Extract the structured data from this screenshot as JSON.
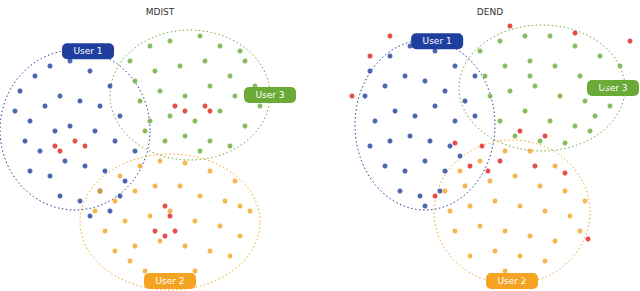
{
  "chart_data": [
    {
      "type": "scatter",
      "title": "MDIST",
      "xlim": [
        0,
        310
      ],
      "ylim": [
        0,
        291
      ],
      "tick_labels": false,
      "series": [
        {
          "name": "User 1",
          "color": "#1f3f9e",
          "ellipse": [
            75,
            161,
            75,
            80
          ],
          "values": [
            [
              20,
              200
            ],
            [
              35,
              215
            ],
            [
              50,
              225
            ],
            [
              70,
              230
            ],
            [
              90,
              220
            ],
            [
              110,
              205
            ],
            [
              15,
              180
            ],
            [
              30,
              170
            ],
            [
              45,
              185
            ],
            [
              60,
              195
            ],
            [
              80,
              190
            ],
            [
              100,
              185
            ],
            [
              120,
              175
            ],
            [
              25,
              150
            ],
            [
              40,
              140
            ],
            [
              55,
              160
            ],
            [
              70,
              165
            ],
            [
              95,
              160
            ],
            [
              115,
              150
            ],
            [
              135,
              140
            ],
            [
              30,
              120
            ],
            [
              50,
              115
            ],
            [
              65,
              130
            ],
            [
              85,
              125
            ],
            [
              105,
              120
            ],
            [
              125,
              110
            ],
            [
              60,
              95
            ],
            [
              80,
              90
            ],
            [
              100,
              100
            ],
            [
              120,
              95
            ],
            [
              90,
              75
            ],
            [
              110,
              80
            ]
          ]
        },
        {
          "name": "User 3",
          "color": "#6aaa36",
          "ellipse": [
            190,
            196,
            80,
            65
          ],
          "values": [
            [
              130,
              230
            ],
            [
              150,
              245
            ],
            [
              170,
              250
            ],
            [
              200,
              255
            ],
            [
              220,
              245
            ],
            [
              245,
              230
            ],
            [
              135,
              210
            ],
            [
              155,
              220
            ],
            [
              180,
              225
            ],
            [
              205,
              230
            ],
            [
              230,
              215
            ],
            [
              255,
              205
            ],
            [
              140,
              190
            ],
            [
              160,
              200
            ],
            [
              185,
              195
            ],
            [
              210,
              205
            ],
            [
              235,
              195
            ],
            [
              260,
              185
            ],
            [
              150,
              170
            ],
            [
              170,
              175
            ],
            [
              195,
              170
            ],
            [
              220,
              180
            ],
            [
              245,
              165
            ],
            [
              165,
              150
            ],
            [
              185,
              155
            ],
            [
              210,
              150
            ],
            [
              230,
              145
            ],
            [
              200,
              140
            ],
            [
              145,
              160
            ],
            [
              240,
              240
            ]
          ]
        },
        {
          "name": "User 2",
          "color": "#f4a322",
          "ellipse": [
            170,
            69,
            90,
            68
          ],
          "values": [
            [
              100,
              100
            ],
            [
              120,
              115
            ],
            [
              140,
              125
            ],
            [
              160,
              130
            ],
            [
              185,
              128
            ],
            [
              210,
              120
            ],
            [
              235,
              110
            ],
            [
              95,
              80
            ],
            [
              115,
              90
            ],
            [
              135,
              100
            ],
            [
              155,
              105
            ],
            [
              180,
              105
            ],
            [
              200,
              95
            ],
            [
              225,
              90
            ],
            [
              250,
              80
            ],
            [
              105,
              60
            ],
            [
              125,
              70
            ],
            [
              150,
              75
            ],
            [
              170,
              80
            ],
            [
              195,
              70
            ],
            [
              220,
              65
            ],
            [
              240,
              55
            ],
            [
              115,
              40
            ],
            [
              135,
              45
            ],
            [
              160,
              50
            ],
            [
              185,
              45
            ],
            [
              210,
              40
            ],
            [
              230,
              35
            ],
            [
              145,
              20
            ],
            [
              170,
              15
            ],
            [
              195,
              20
            ],
            [
              130,
              30
            ],
            [
              240,
              85
            ]
          ]
        },
        {
          "color": "#e0201c",
          "values": [
            [
              55,
              145
            ],
            [
              60,
              140
            ],
            [
              75,
              150
            ],
            [
              85,
              145
            ],
            [
              175,
              185
            ],
            [
              185,
              180
            ],
            [
              205,
              185
            ],
            [
              210,
              180
            ],
            [
              165,
              85
            ],
            [
              170,
              75
            ],
            [
              155,
              60
            ],
            [
              175,
              60
            ],
            [
              165,
              55
            ]
          ]
        }
      ]
    },
    {
      "type": "scatter",
      "title": "DEND",
      "xlim": [
        0,
        310
      ],
      "ylim": [
        0,
        291
      ],
      "tick_labels": false,
      "series": [
        {
          "name": "User 1",
          "color": "#1f3f9e",
          "ellipse": [
            95,
            166,
            70,
            85
          ],
          "values": [
            [
              40,
              220
            ],
            [
              60,
              235
            ],
            [
              80,
              245
            ],
            [
              105,
              240
            ],
            [
              125,
              225
            ],
            [
              145,
              215
            ],
            [
              35,
              195
            ],
            [
              55,
              205
            ],
            [
              75,
              215
            ],
            [
              95,
              210
            ],
            [
              115,
              200
            ],
            [
              135,
              190
            ],
            [
              45,
              170
            ],
            [
              65,
              180
            ],
            [
              85,
              175
            ],
            [
              105,
              185
            ],
            [
              125,
              170
            ],
            [
              145,
              175
            ],
            [
              40,
              145
            ],
            [
              60,
              150
            ],
            [
              80,
              155
            ],
            [
              100,
              150
            ],
            [
              120,
              145
            ],
            [
              55,
              125
            ],
            [
              75,
              120
            ],
            [
              95,
              130
            ],
            [
              115,
              120
            ],
            [
              70,
              100
            ],
            [
              90,
              95
            ],
            [
              110,
              100
            ],
            [
              130,
              135
            ],
            [
              95,
              85
            ]
          ]
        },
        {
          "name": "User 3",
          "color": "#6aaa36",
          "ellipse": [
            212,
            203,
            83,
            63
          ],
          "values": [
            [
              150,
              240
            ],
            [
              170,
              250
            ],
            [
              195,
              255
            ],
            [
              220,
              255
            ],
            [
              245,
              245
            ],
            [
              270,
              235
            ],
            [
              290,
              225
            ],
            [
              155,
              215
            ],
            [
              175,
              225
            ],
            [
              200,
              230
            ],
            [
              225,
              225
            ],
            [
              250,
              215
            ],
            [
              275,
              205
            ],
            [
              160,
              195
            ],
            [
              180,
              200
            ],
            [
              205,
              205
            ],
            [
              230,
              195
            ],
            [
              255,
              190
            ],
            [
              280,
              185
            ],
            [
              170,
              170
            ],
            [
              195,
              180
            ],
            [
              220,
              170
            ],
            [
              245,
              165
            ],
            [
              185,
              155
            ],
            [
              210,
              150
            ],
            [
              235,
              148
            ],
            [
              260,
              160
            ],
            [
              200,
              215
            ],
            [
              265,
              175
            ]
          ]
        },
        {
          "name": "User 2",
          "color": "#f4a322",
          "ellipse": [
            182,
            79,
            78,
            72
          ],
          "values": [
            [
              130,
              120
            ],
            [
              150,
              130
            ],
            [
              175,
              140
            ],
            [
              200,
              140
            ],
            [
              225,
              125
            ],
            [
              115,
              100
            ],
            [
              135,
              105
            ],
            [
              160,
              110
            ],
            [
              185,
              115
            ],
            [
              210,
              105
            ],
            [
              235,
              100
            ],
            [
              255,
              90
            ],
            [
              120,
              80
            ],
            [
              140,
              85
            ],
            [
              165,
              90
            ],
            [
              190,
              85
            ],
            [
              215,
              80
            ],
            [
              240,
              75
            ],
            [
              125,
              60
            ],
            [
              150,
              65
            ],
            [
              175,
              60
            ],
            [
              200,
              55
            ],
            [
              225,
              50
            ],
            [
              140,
              35
            ],
            [
              165,
              40
            ],
            [
              190,
              35
            ],
            [
              215,
              30
            ],
            [
              175,
              20
            ],
            [
              195,
              15
            ],
            [
              250,
              60
            ]
          ]
        },
        {
          "color": "#e0201c",
          "values": [
            [
              22,
              195
            ],
            [
              40,
              235
            ],
            [
              60,
              255
            ],
            [
              152,
              145
            ],
            [
              140,
              125
            ],
            [
              158,
              120
            ],
            [
              180,
              265
            ],
            [
              300,
              250
            ],
            [
              245,
              258
            ],
            [
              190,
              160
            ],
            [
              215,
              155
            ],
            [
              170,
              130
            ],
            [
              205,
              125
            ],
            [
              235,
              118
            ],
            [
              258,
              52
            ],
            [
              105,
              95
            ],
            [
              125,
              148
            ]
          ]
        }
      ]
    }
  ]
}
